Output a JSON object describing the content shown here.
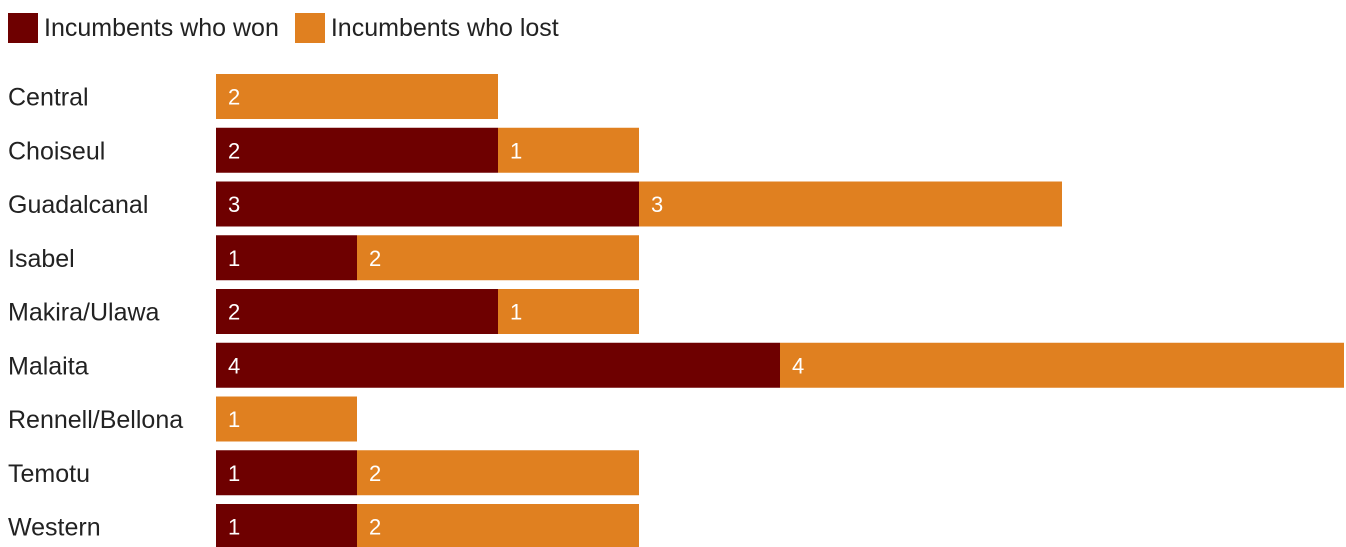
{
  "colors": {
    "won": "#6e0000",
    "lost": "#e08020",
    "text": "#222222",
    "value_text": "#ffffff"
  },
  "legend": {
    "items": [
      {
        "label": "Incumbents who won",
        "color": "#6e0000"
      },
      {
        "label": "Incumbents who lost",
        "color": "#e08020"
      }
    ]
  },
  "chart_data": {
    "type": "bar",
    "orientation": "horizontal",
    "stacked": true,
    "categories": [
      "Central",
      "Choiseul",
      "Guadalcanal",
      "Isabel",
      "Makira/Ulawa",
      "Malaita",
      "Rennell/Bellona",
      "Temotu",
      "Western"
    ],
    "series": [
      {
        "name": "Incumbents who won",
        "color": "#6e0000",
        "values": [
          0,
          2,
          3,
          1,
          2,
          4,
          0,
          1,
          1
        ]
      },
      {
        "name": "Incumbents who lost",
        "color": "#e08020",
        "values": [
          2,
          1,
          3,
          2,
          1,
          4,
          1,
          2,
          2
        ]
      }
    ],
    "data_labels": true,
    "legend_position": "top-left",
    "grid": false
  }
}
